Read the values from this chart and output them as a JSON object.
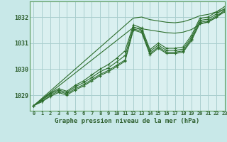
{
  "title": "Graphe pression niveau de la mer (hPa)",
  "background_color": "#c8e8e8",
  "plot_bg_color": "#daf0f0",
  "grid_color": "#aacece",
  "line_color": "#2d6e2d",
  "xlim": [
    -0.5,
    23
  ],
  "ylim": [
    1028.4,
    1032.6
  ],
  "yticks": [
    1029,
    1030,
    1031,
    1032
  ],
  "xticks": [
    0,
    1,
    2,
    3,
    4,
    5,
    6,
    7,
    8,
    9,
    10,
    11,
    12,
    13,
    14,
    15,
    16,
    17,
    18,
    19,
    20,
    21,
    22,
    23
  ],
  "series": [
    [
      1028.6,
      1028.75,
      1029.0,
      1029.15,
      1029.05,
      1029.25,
      1029.4,
      1029.6,
      1029.8,
      1029.95,
      1030.15,
      1030.35,
      1031.55,
      1031.45,
      1030.6,
      1030.85,
      1030.65,
      1030.65,
      1030.7,
      1031.15,
      1031.8,
      1031.85,
      1032.05,
      1032.25
    ],
    [
      1028.6,
      1028.75,
      1028.95,
      1029.1,
      1029.0,
      1029.2,
      1029.35,
      1029.55,
      1029.75,
      1029.9,
      1030.1,
      1030.3,
      1031.5,
      1031.4,
      1030.55,
      1030.8,
      1030.6,
      1030.6,
      1030.65,
      1031.1,
      1031.75,
      1031.8,
      1032.0,
      1032.2
    ],
    [
      1028.6,
      1028.8,
      1029.05,
      1029.2,
      1029.1,
      1029.32,
      1029.48,
      1029.68,
      1029.9,
      1030.05,
      1030.28,
      1030.52,
      1031.62,
      1031.5,
      1030.68,
      1030.92,
      1030.72,
      1030.72,
      1030.77,
      1031.22,
      1031.87,
      1031.92,
      1032.12,
      1032.32
    ],
    [
      1028.6,
      1028.82,
      1029.08,
      1029.25,
      1029.15,
      1029.38,
      1029.55,
      1029.78,
      1030.0,
      1030.18,
      1030.42,
      1030.7,
      1031.7,
      1031.58,
      1030.75,
      1031.0,
      1030.8,
      1030.8,
      1030.85,
      1031.3,
      1031.95,
      1032.0,
      1032.2,
      1032.4
    ]
  ],
  "linear_series": [
    [
      1028.6,
      1028.88,
      1029.16,
      1029.44,
      1029.72,
      1030.0,
      1030.28,
      1030.56,
      1030.84,
      1031.12,
      1031.4,
      1031.68,
      1031.96,
      1032.0,
      1031.9,
      1031.85,
      1031.8,
      1031.78,
      1031.82,
      1031.92,
      1032.05,
      1032.1,
      1032.2,
      1032.3
    ],
    [
      1028.6,
      1028.85,
      1029.1,
      1029.35,
      1029.6,
      1029.85,
      1030.1,
      1030.35,
      1030.6,
      1030.85,
      1031.1,
      1031.35,
      1031.6,
      1031.55,
      1031.5,
      1031.45,
      1031.4,
      1031.38,
      1031.42,
      1031.52,
      1031.72,
      1031.82,
      1031.98,
      1032.28
    ]
  ]
}
